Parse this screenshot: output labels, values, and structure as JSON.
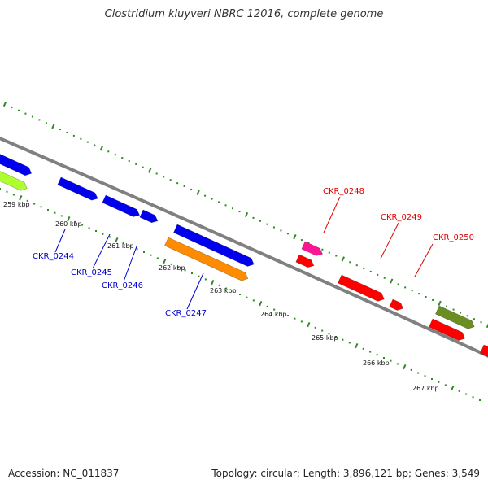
{
  "title": "Clostridium kluyveri NBRC 12016, complete genome",
  "footer": {
    "accession": "Accession: NC_011837",
    "summary": "Topology: circular; Length: 3,896,121 bp; Genes: 3,549"
  },
  "colors": {
    "backbone": "#808080",
    "tick": "#2e8b20",
    "blue_gene": "#0000ee",
    "orange_gene": "#ff8c00",
    "red_gene": "#ff0000",
    "pink_gene": "#ff1493",
    "olive_gene": "#6b8e23",
    "lime_gene": "#adff2f",
    "blue_label": "#0000cc",
    "red_label": "#dd0000"
  },
  "scale_labels": [
    "259 kbp",
    "260 kbp",
    "261 kbp",
    "262 kbp",
    "263 kbp",
    "264 kbp",
    "265 kbp",
    "266 kbp",
    "267 kbp"
  ],
  "gene_labels": [
    {
      "name": "CKR_0244",
      "color": "blue"
    },
    {
      "name": "CKR_0245",
      "color": "blue"
    },
    {
      "name": "CKR_0246",
      "color": "blue"
    },
    {
      "name": "CKR_0247",
      "color": "blue"
    },
    {
      "name": "CKR_0248",
      "color": "red"
    },
    {
      "name": "CKR_0249",
      "color": "red"
    },
    {
      "name": "CKR_0250",
      "color": "red"
    }
  ]
}
